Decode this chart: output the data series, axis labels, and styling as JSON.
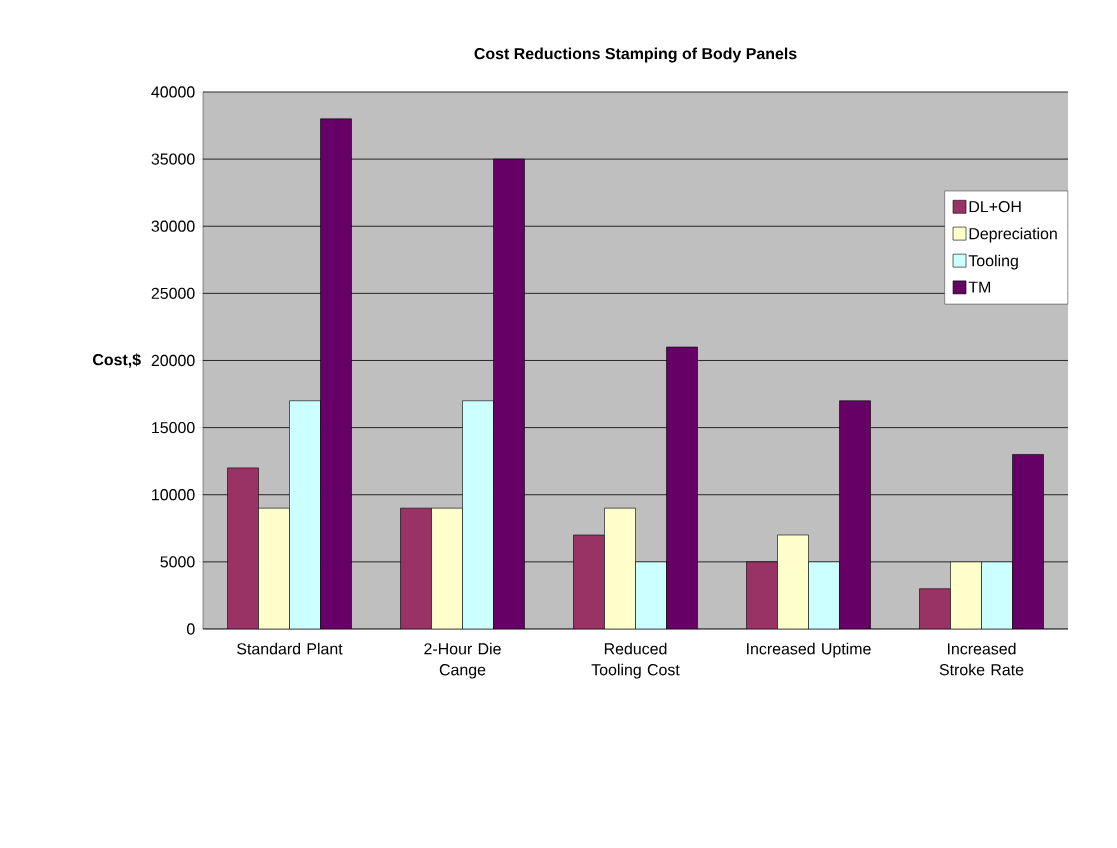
{
  "chart_data": {
    "type": "bar",
    "title": "Cost Reductions Stamping of Body Panels",
    "ylabel": "Cost,$",
    "categories": [
      "Standard Plant",
      "2-Hour Die Cange",
      "Reduced Tooling Cost",
      "Increased Uptime",
      "Increased Stroke Rate"
    ],
    "series": [
      {
        "name": "DL+OH",
        "color": "#993366",
        "values": [
          12000,
          9000,
          7000,
          5000,
          3000
        ]
      },
      {
        "name": "Depreciation",
        "color": "#ffffcc",
        "values": [
          9000,
          9000,
          9000,
          7000,
          5000
        ]
      },
      {
        "name": "Tooling",
        "color": "#ccffff",
        "values": [
          17000,
          17000,
          5000,
          5000,
          5000
        ]
      },
      {
        "name": "TM",
        "color": "#660066",
        "values": [
          38000,
          35000,
          21000,
          17000,
          13000
        ]
      }
    ],
    "ylim": [
      0,
      40000
    ],
    "yticks": [
      0,
      5000,
      10000,
      15000,
      20000,
      25000,
      30000,
      35000,
      40000
    ],
    "grid": "y",
    "legend": "right"
  }
}
